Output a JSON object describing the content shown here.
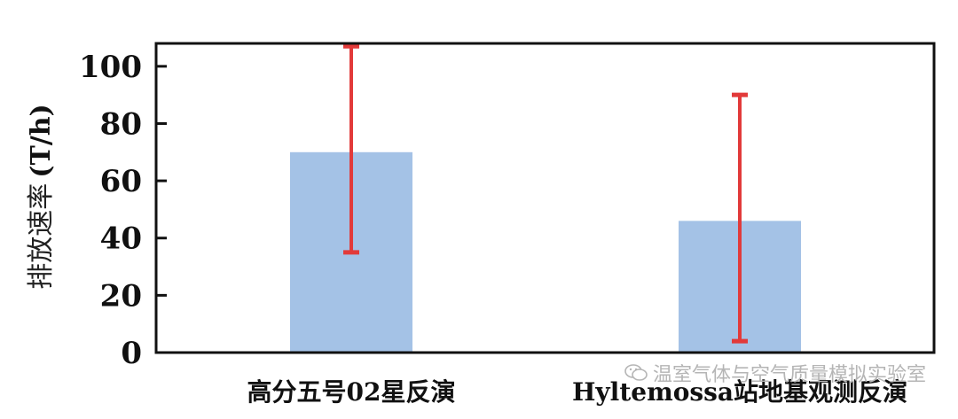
{
  "chart_data": {
    "type": "bar",
    "categories": [
      "高分五号02星反演",
      "Hyltemossa站地基观测反演"
    ],
    "values": [
      70,
      46
    ],
    "error_bars": [
      {
        "low": 35,
        "high": 107
      },
      {
        "low": 4,
        "high": 90
      }
    ],
    "yticks": [
      0,
      20,
      40,
      60,
      80,
      100
    ],
    "ylim": [
      0,
      108
    ],
    "ylabel": "排放速率",
    "ylabel_unit": "(T/h)",
    "xlabel": "",
    "title": "",
    "grid": false,
    "colors": {
      "bar": "#a4c2e6",
      "error_bar": "#e23a3a",
      "axis": "#111111"
    }
  },
  "watermark": {
    "text": "温室气体与空气质量模拟实验室",
    "icon": "wechat-icon"
  }
}
